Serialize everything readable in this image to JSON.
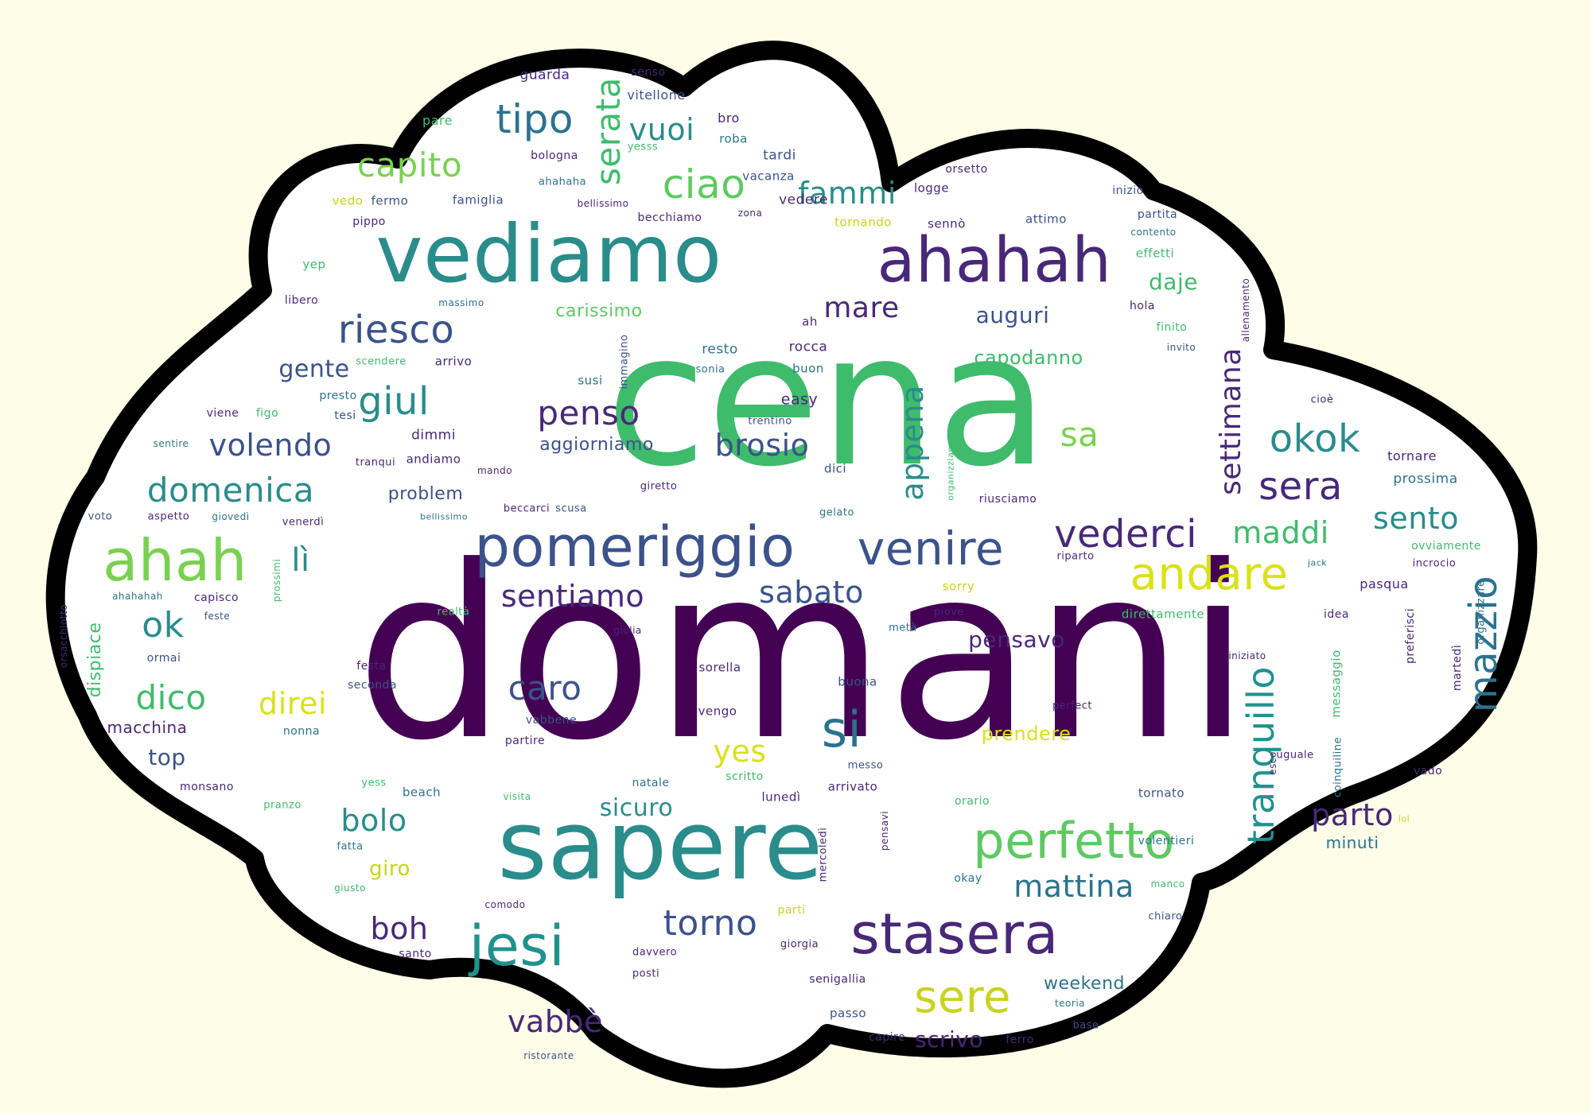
{
  "palette": {
    "background": "#fdfde8",
    "cloud_fill": "#ffffff",
    "cloud_outline": "#000000",
    "word_colors": [
      "#440154",
      "#3b528b",
      "#21918c",
      "#5ec962",
      "#fde725",
      "#2c728e",
      "#35b779",
      "#482878",
      "#c8d31f"
    ]
  },
  "words": [
    {
      "text": "domani"
    },
    {
      "text": "cena"
    },
    {
      "text": "sapere"
    },
    {
      "text": "vediamo"
    },
    {
      "text": "ahahah"
    },
    {
      "text": "pomeriggio"
    },
    {
      "text": "stasera"
    },
    {
      "text": "ahah"
    },
    {
      "text": "perfetto"
    },
    {
      "text": "venire"
    },
    {
      "text": "jesi"
    },
    {
      "text": "andare"
    },
    {
      "text": "riesco"
    },
    {
      "text": "tipo"
    },
    {
      "text": "ciao"
    },
    {
      "text": "vederci"
    },
    {
      "text": "sere"
    },
    {
      "text": "mazzio"
    },
    {
      "text": "tranquillo"
    },
    {
      "text": "si"
    },
    {
      "text": "okok"
    },
    {
      "text": "sera"
    },
    {
      "text": "domenica"
    },
    {
      "text": "capito"
    },
    {
      "text": "giul"
    },
    {
      "text": "volendo"
    },
    {
      "text": "penso"
    },
    {
      "text": "sentiamo"
    },
    {
      "text": "sabato"
    },
    {
      "text": "brosio"
    },
    {
      "text": "settimana"
    },
    {
      "text": "appena"
    },
    {
      "text": "serata"
    },
    {
      "text": "vuoi"
    },
    {
      "text": "fammi"
    },
    {
      "text": "mare"
    },
    {
      "text": "sa"
    },
    {
      "text": "mattina"
    },
    {
      "text": "torno"
    },
    {
      "text": "vabbè"
    },
    {
      "text": "caro"
    },
    {
      "text": "ok"
    },
    {
      "text": "dico"
    },
    {
      "text": "direi"
    },
    {
      "text": "yes"
    },
    {
      "text": "parto"
    },
    {
      "text": "sento"
    },
    {
      "text": "maddi"
    },
    {
      "text": "bolo"
    },
    {
      "text": "boh"
    },
    {
      "text": "lì"
    },
    {
      "text": "auguri"
    },
    {
      "text": "gente"
    },
    {
      "text": "daje"
    },
    {
      "text": "pensavo"
    },
    {
      "text": "sicuro"
    },
    {
      "text": "scrivo"
    },
    {
      "text": "weekend"
    },
    {
      "text": "capodanno"
    },
    {
      "text": "carissimo"
    },
    {
      "text": "aggiorniamo"
    },
    {
      "text": "problem"
    },
    {
      "text": "top"
    },
    {
      "text": "giro"
    },
    {
      "text": "macchina"
    },
    {
      "text": "dispiace"
    },
    {
      "text": "prendere"
    },
    {
      "text": "minuti"
    },
    {
      "text": "guarda"
    },
    {
      "text": "senso"
    },
    {
      "text": "vitellone"
    },
    {
      "text": "pare"
    },
    {
      "text": "bro"
    },
    {
      "text": "roba"
    },
    {
      "text": "bologna"
    },
    {
      "text": "yesss"
    },
    {
      "text": "tardi"
    },
    {
      "text": "orsetto"
    },
    {
      "text": "ahahaha"
    },
    {
      "text": "vacanza"
    },
    {
      "text": "inizio"
    },
    {
      "text": "vedo"
    },
    {
      "text": "fermo"
    },
    {
      "text": "famiglia"
    },
    {
      "text": "bellissimo"
    },
    {
      "text": "vedere"
    },
    {
      "text": "logge"
    },
    {
      "text": "zona"
    },
    {
      "text": "becchiamo"
    },
    {
      "text": "tornando"
    },
    {
      "text": "sennò"
    },
    {
      "text": "attimo"
    },
    {
      "text": "partita"
    },
    {
      "text": "pippo"
    },
    {
      "text": "contento"
    },
    {
      "text": "effetti"
    },
    {
      "text": "yep"
    },
    {
      "text": "libero"
    },
    {
      "text": "massimo"
    },
    {
      "text": "hola"
    },
    {
      "text": "finito"
    },
    {
      "text": "invito"
    },
    {
      "text": "resto"
    },
    {
      "text": "rocca"
    },
    {
      "text": "buon"
    },
    {
      "text": "sonia"
    },
    {
      "text": "susi"
    },
    {
      "text": "easy"
    },
    {
      "text": "trentino"
    },
    {
      "text": "ah"
    },
    {
      "text": "scendere"
    },
    {
      "text": "arrivo"
    },
    {
      "text": "presto"
    },
    {
      "text": "tesi"
    },
    {
      "text": "viene"
    },
    {
      "text": "figo"
    },
    {
      "text": "dimmi"
    },
    {
      "text": "andiamo"
    },
    {
      "text": "tranqui"
    },
    {
      "text": "sentire"
    },
    {
      "text": "mando"
    },
    {
      "text": "giretto"
    },
    {
      "text": "dici"
    },
    {
      "text": "gelato"
    },
    {
      "text": "riusciamo"
    },
    {
      "text": "beccarci"
    },
    {
      "text": "scusa"
    },
    {
      "text": "bellissimo"
    },
    {
      "text": "aspetto"
    },
    {
      "text": "giovedì"
    },
    {
      "text": "venerdì"
    },
    {
      "text": "voto"
    },
    {
      "text": "riparto"
    },
    {
      "text": "jack"
    },
    {
      "text": "incrocio"
    },
    {
      "text": "ovviamente"
    },
    {
      "text": "prossima"
    },
    {
      "text": "tornare"
    },
    {
      "text": "cioè"
    },
    {
      "text": "pasqua"
    },
    {
      "text": "sorry"
    },
    {
      "text": "piove"
    },
    {
      "text": "ahahahah"
    },
    {
      "text": "capisco"
    },
    {
      "text": "feste"
    },
    {
      "text": "realtà"
    },
    {
      "text": "metà"
    },
    {
      "text": "direttamente"
    },
    {
      "text": "idea"
    },
    {
      "text": "ormai"
    },
    {
      "text": "festa"
    },
    {
      "text": "seconda"
    },
    {
      "text": "giulia"
    },
    {
      "text": "sorella"
    },
    {
      "text": "vengo"
    },
    {
      "text": "buona"
    },
    {
      "text": "perfect"
    },
    {
      "text": "iniziato"
    },
    {
      "text": "messaggio"
    },
    {
      "text": "preferisci"
    },
    {
      "text": "martedì"
    },
    {
      "text": "vabbene"
    },
    {
      "text": "partire"
    },
    {
      "text": "nonna"
    },
    {
      "text": "messo"
    },
    {
      "text": "uguale"
    },
    {
      "text": "natale"
    },
    {
      "text": "scritto"
    },
    {
      "text": "lunedì"
    },
    {
      "text": "arrivato"
    },
    {
      "text": "orario"
    },
    {
      "text": "tornato"
    },
    {
      "text": "vado"
    },
    {
      "text": "beach"
    },
    {
      "text": "monsano"
    },
    {
      "text": "yess"
    },
    {
      "text": "pranzo"
    },
    {
      "text": "visita"
    },
    {
      "text": "fatta"
    },
    {
      "text": "giusto"
    },
    {
      "text": "pensavi"
    },
    {
      "text": "mercoledì"
    },
    {
      "text": "volentieri"
    },
    {
      "text": "okay"
    },
    {
      "text": "manco"
    },
    {
      "text": "comodo"
    },
    {
      "text": "parti"
    },
    {
      "text": "chiaro"
    },
    {
      "text": "santo"
    },
    {
      "text": "davvero"
    },
    {
      "text": "giorgia"
    },
    {
      "text": "posti"
    },
    {
      "text": "senigallia"
    },
    {
      "text": "ristorante"
    },
    {
      "text": "passo"
    },
    {
      "text": "teoria"
    },
    {
      "text": "capire"
    },
    {
      "text": "base"
    },
    {
      "text": "ferro"
    },
    {
      "text": "lol"
    },
    {
      "text": "esco"
    },
    {
      "text": "coinquiline"
    },
    {
      "text": "organizzare"
    },
    {
      "text": "allenamento"
    },
    {
      "text": "organizziamo"
    },
    {
      "text": "immagino"
    },
    {
      "text": "prossimi"
    },
    {
      "text": "orsacchiotto"
    }
  ]
}
